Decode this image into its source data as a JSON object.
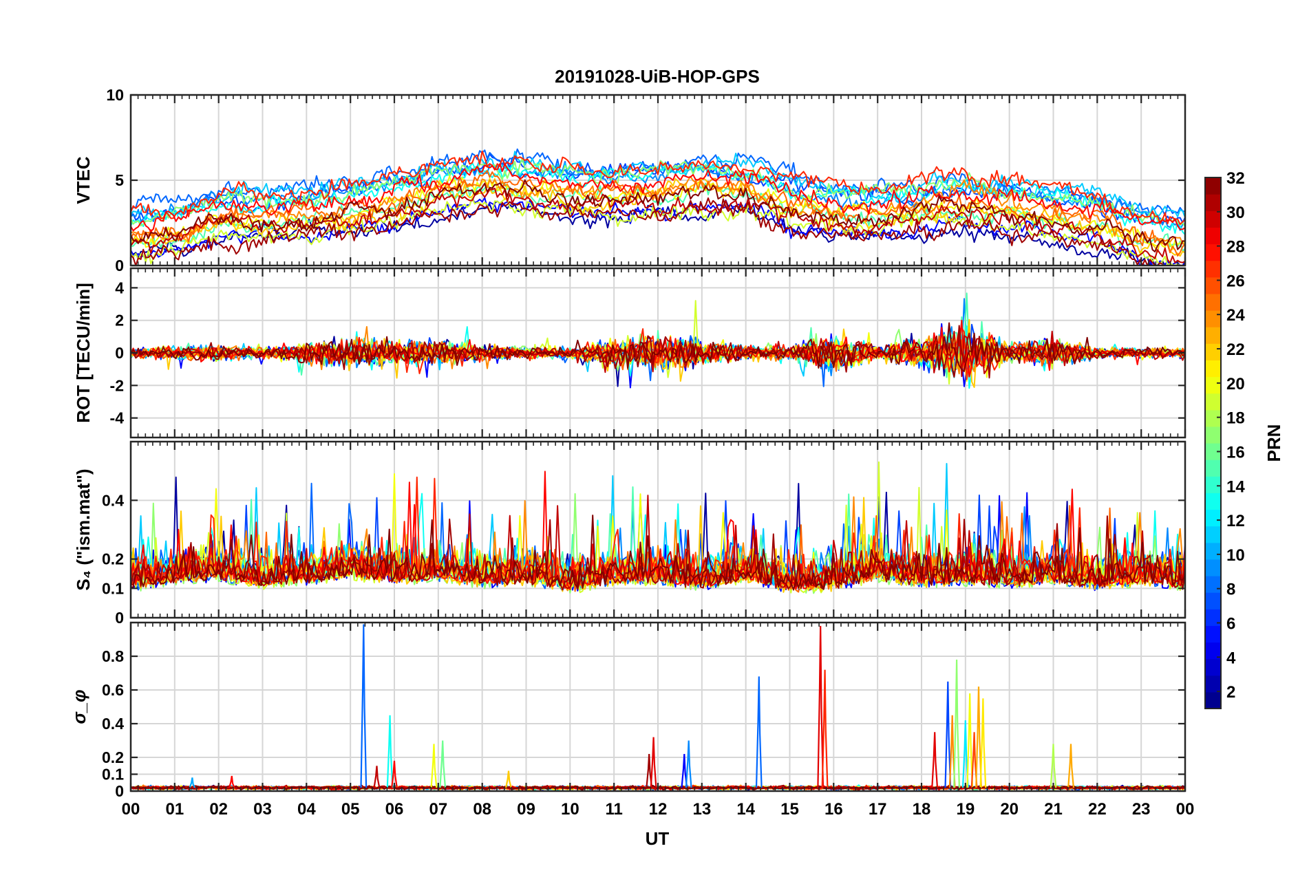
{
  "chart_data": {
    "type": "line",
    "title": "20191028-UiB-HOP-GPS",
    "xlabel": "UT",
    "x_range": [
      0,
      24
    ],
    "x_ticks": [
      0,
      1,
      2,
      3,
      4,
      5,
      6,
      7,
      8,
      9,
      10,
      11,
      12,
      13,
      14,
      15,
      16,
      17,
      18,
      19,
      20,
      21,
      22,
      23,
      24
    ],
    "x_tick_labels": [
      "00",
      "01",
      "02",
      "03",
      "04",
      "05",
      "06",
      "07",
      "08",
      "09",
      "10",
      "11",
      "12",
      "13",
      "14",
      "15",
      "16",
      "17",
      "18",
      "19",
      "20",
      "21",
      "22",
      "23",
      "00"
    ],
    "colorbar": {
      "label": "PRN",
      "range": [
        1,
        32
      ],
      "ticks": [
        2,
        4,
        6,
        8,
        10,
        12,
        14,
        16,
        18,
        20,
        22,
        24,
        26,
        28,
        30,
        32
      ],
      "tick_labels": [
        "2",
        "4",
        "6",
        "8",
        "10",
        "12",
        "14",
        "16",
        "18",
        "20",
        "22",
        "24",
        "26",
        "28",
        "30",
        "32"
      ],
      "colormap": "jet"
    },
    "panels": [
      {
        "id": "vtec",
        "ylabel": "VTEC",
        "ylim": [
          0,
          10
        ],
        "yticks": [
          0,
          5,
          10
        ],
        "ytick_labels": [
          "0",
          "5",
          "10"
        ],
        "grid": true,
        "envelope": [
          [
            0,
            2.0
          ],
          [
            1,
            2.2
          ],
          [
            2,
            3.0
          ],
          [
            3,
            3.1
          ],
          [
            4,
            3.0
          ],
          [
            5,
            3.4
          ],
          [
            6,
            3.9
          ],
          [
            7,
            4.6
          ],
          [
            8,
            5.0
          ],
          [
            9,
            4.8
          ],
          [
            10,
            4.5
          ],
          [
            11,
            4.4
          ],
          [
            12,
            4.5
          ],
          [
            13,
            4.9
          ],
          [
            14,
            4.7
          ],
          [
            15,
            3.8
          ],
          [
            16,
            3.4
          ],
          [
            17,
            3.1
          ],
          [
            18,
            3.6
          ],
          [
            19,
            3.9
          ],
          [
            20,
            3.5
          ],
          [
            21,
            3.1
          ],
          [
            22,
            2.8
          ],
          [
            23,
            1.9
          ],
          [
            24,
            1.6
          ]
        ],
        "spread": 1.6,
        "noise": 0.45
      },
      {
        "id": "rot",
        "ylabel": "ROT [TECU/min]",
        "ylim": [
          -5.2,
          5.2
        ],
        "yticks": [
          -4,
          -2,
          0,
          2,
          4
        ],
        "ytick_labels": [
          "-4",
          "-2",
          "0",
          "2",
          "4"
        ],
        "grid": true,
        "envelope": [
          [
            0,
            0.3
          ],
          [
            1,
            0.4
          ],
          [
            2,
            0.5
          ],
          [
            3,
            0.3
          ],
          [
            4,
            0.6
          ],
          [
            5,
            0.9
          ],
          [
            6,
            0.8
          ],
          [
            7,
            0.8
          ],
          [
            8,
            0.5
          ],
          [
            9,
            0.4
          ],
          [
            10,
            0.3
          ],
          [
            11,
            0.9
          ],
          [
            12,
            1.2
          ],
          [
            13,
            0.9
          ],
          [
            14,
            0.5
          ],
          [
            15,
            0.4
          ],
          [
            16,
            1.2
          ],
          [
            17,
            0.5
          ],
          [
            18,
            1.0
          ],
          [
            19,
            2.0
          ],
          [
            20,
            0.6
          ],
          [
            21,
            1.0
          ],
          [
            22,
            0.3
          ],
          [
            23,
            0.3
          ],
          [
            24,
            0.3
          ]
        ],
        "spread": 0.0,
        "noise": 1.0
      },
      {
        "id": "s4",
        "ylabel": "S₄ (\"ism.mat\")",
        "ylim": [
          0,
          0.6
        ],
        "yticks": [
          0,
          0.1,
          0.2,
          0.4
        ],
        "ytick_labels": [
          "0",
          "0.1",
          "0.2",
          "0.4"
        ],
        "grid": true,
        "envelope": [
          [
            0,
            0.1
          ],
          [
            1,
            0.12
          ],
          [
            2,
            0.13
          ],
          [
            3,
            0.11
          ],
          [
            4,
            0.12
          ],
          [
            5,
            0.14
          ],
          [
            6,
            0.12
          ],
          [
            7,
            0.13
          ],
          [
            8,
            0.11
          ],
          [
            9,
            0.12
          ],
          [
            10,
            0.09
          ],
          [
            11,
            0.12
          ],
          [
            12,
            0.12
          ],
          [
            13,
            0.1
          ],
          [
            14,
            0.13
          ],
          [
            15,
            0.09
          ],
          [
            16,
            0.1
          ],
          [
            17,
            0.13
          ],
          [
            18,
            0.11
          ],
          [
            19,
            0.12
          ],
          [
            20,
            0.11
          ],
          [
            21,
            0.12
          ],
          [
            22,
            0.1
          ],
          [
            23,
            0.12
          ],
          [
            24,
            0.1
          ]
        ],
        "spread": 0.03,
        "noise": 0.05
      },
      {
        "id": "sigma_phi",
        "ylabel": "σ_φ",
        "ylim": [
          0,
          1.0
        ],
        "yticks": [
          0,
          0.1,
          0.2,
          0.4,
          0.6,
          0.8
        ],
        "ytick_labels": [
          "0",
          "0.1",
          "0.2",
          "0.4",
          "0.6",
          "0.8"
        ],
        "grid": true,
        "envelope": [
          [
            0,
            0.02
          ],
          [
            24,
            0.02
          ]
        ],
        "spread": 0.005,
        "noise": 0.01,
        "spikes": [
          {
            "t": 1.4,
            "v": 0.08,
            "prn": 10
          },
          {
            "t": 2.3,
            "v": 0.09,
            "prn": 28
          },
          {
            "t": 5.3,
            "v": 0.99,
            "prn": 8
          },
          {
            "t": 5.6,
            "v": 0.15,
            "prn": 30
          },
          {
            "t": 5.9,
            "v": 0.45,
            "prn": 13
          },
          {
            "t": 6.0,
            "v": 0.18,
            "prn": 28
          },
          {
            "t": 6.9,
            "v": 0.28,
            "prn": 20
          },
          {
            "t": 7.1,
            "v": 0.3,
            "prn": 16
          },
          {
            "t": 8.6,
            "v": 0.12,
            "prn": 22
          },
          {
            "t": 11.8,
            "v": 0.22,
            "prn": 31
          },
          {
            "t": 11.9,
            "v": 0.32,
            "prn": 29
          },
          {
            "t": 12.6,
            "v": 0.22,
            "prn": 5
          },
          {
            "t": 12.7,
            "v": 0.3,
            "prn": 9
          },
          {
            "t": 14.3,
            "v": 0.68,
            "prn": 8
          },
          {
            "t": 15.7,
            "v": 0.98,
            "prn": 29
          },
          {
            "t": 15.8,
            "v": 0.72,
            "prn": 27
          },
          {
            "t": 18.3,
            "v": 0.35,
            "prn": 29
          },
          {
            "t": 18.6,
            "v": 0.65,
            "prn": 7
          },
          {
            "t": 18.7,
            "v": 0.45,
            "prn": 24
          },
          {
            "t": 18.8,
            "v": 0.78,
            "prn": 17
          },
          {
            "t": 19.0,
            "v": 0.42,
            "prn": 12
          },
          {
            "t": 19.1,
            "v": 0.58,
            "prn": 20
          },
          {
            "t": 19.2,
            "v": 0.35,
            "prn": 26
          },
          {
            "t": 19.3,
            "v": 0.62,
            "prn": 23
          },
          {
            "t": 19.4,
            "v": 0.55,
            "prn": 21
          },
          {
            "t": 21.0,
            "v": 0.28,
            "prn": 18
          },
          {
            "t": 21.4,
            "v": 0.28,
            "prn": 23
          }
        ]
      }
    ],
    "satellite_prns": [
      2,
      5,
      7,
      8,
      9,
      11,
      13,
      15,
      17,
      19,
      20,
      22,
      24,
      25,
      27,
      28,
      30,
      31,
      32
    ]
  }
}
